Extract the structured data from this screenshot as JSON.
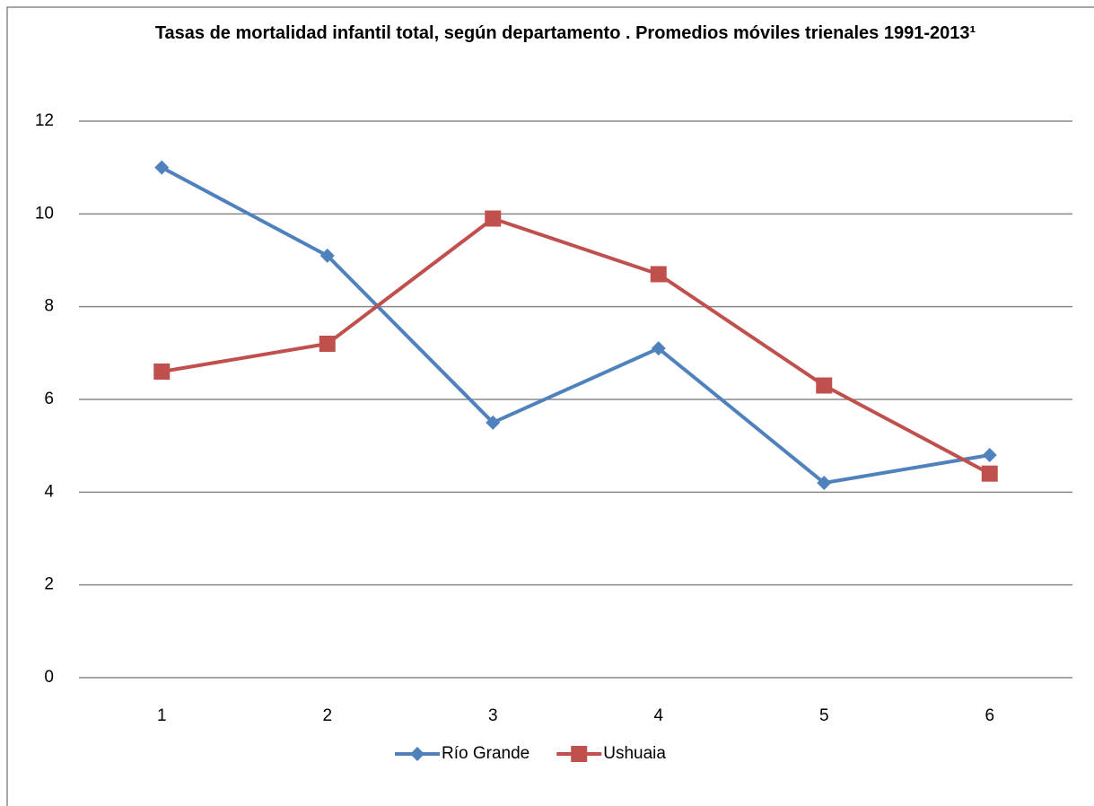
{
  "chart_data": {
    "type": "line",
    "title": "Tasas de mortalidad infantil total, según departamento . Promedios móviles trienales 1991-2013¹",
    "categories": [
      "1",
      "2",
      "3",
      "4",
      "5",
      "6"
    ],
    "series": [
      {
        "name": "Río Grande",
        "color": "#4f81bd",
        "marker": "diamond",
        "values": [
          11,
          9.1,
          5.5,
          7.1,
          4.2,
          4.8
        ]
      },
      {
        "name": "Ushuaia",
        "color": "#c0504d",
        "marker": "square",
        "values": [
          6.6,
          7.2,
          9.9,
          8.7,
          6.3,
          4.4
        ]
      }
    ],
    "ylim": [
      0,
      12
    ],
    "yticks": [
      0,
      2,
      4,
      6,
      8,
      10,
      12
    ],
    "grid": true,
    "legend": "bottom"
  }
}
